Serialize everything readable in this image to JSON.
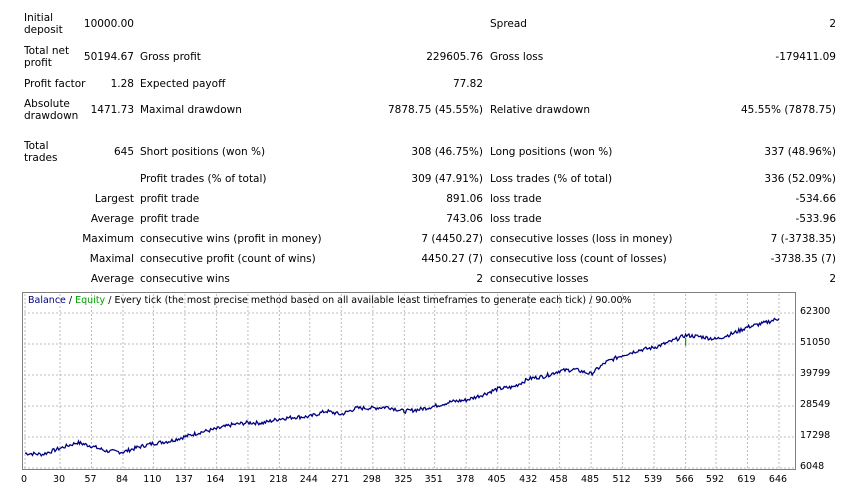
{
  "summary": {
    "initial_deposit": {
      "label": "Initial deposit",
      "value": "10000.00"
    },
    "spread": {
      "label": "Spread",
      "value": "2"
    },
    "total_net_profit": {
      "label": "Total net profit",
      "value": "50194.67"
    },
    "gross_profit": {
      "label": "Gross profit",
      "value": "229605.76"
    },
    "gross_loss": {
      "label": "Gross loss",
      "value": "-179411.09"
    },
    "profit_factor": {
      "label": "Profit factor",
      "value": "1.28"
    },
    "expected_payoff": {
      "label": "Expected payoff",
      "value": "77.82"
    },
    "absolute_drawdown": {
      "label": "Absolute drawdown",
      "value": "1471.73"
    },
    "maximal_drawdown": {
      "label": "Maximal drawdown",
      "value": "7878.75 (45.55%)"
    },
    "relative_drawdown": {
      "label": "Relative drawdown",
      "value": "45.55% (7878.75)"
    },
    "total_trades": {
      "label": "Total trades",
      "value": "645"
    },
    "short_positions": {
      "label": "Short positions (won %)",
      "value": "308 (46.75%)"
    },
    "long_positions": {
      "label": "Long positions (won %)",
      "value": "337 (48.96%)"
    },
    "profit_trades": {
      "label": "Profit trades (% of total)",
      "value": "309 (47.91%)"
    },
    "loss_trades": {
      "label": "Loss trades (% of total)",
      "value": "336 (52.09%)"
    }
  },
  "stats": [
    {
      "prefix": "Largest",
      "left_label": "profit trade",
      "left_value": "891.06",
      "right_label": "loss trade",
      "right_value": "-534.66"
    },
    {
      "prefix": "Average",
      "left_label": "profit trade",
      "left_value": "743.06",
      "right_label": "loss trade",
      "right_value": "-533.96"
    },
    {
      "prefix": "Maximum",
      "left_label": "consecutive wins (profit in money)",
      "left_value": "7 (4450.27)",
      "right_label": "consecutive losses (loss in money)",
      "right_value": "7 (-3738.35)"
    },
    {
      "prefix": "Maximal",
      "left_label": "consecutive profit (count of wins)",
      "left_value": "4450.27 (7)",
      "right_label": "consecutive loss (count of losses)",
      "right_value": "-3738.35 (7)"
    },
    {
      "prefix": "Average",
      "left_label": "consecutive wins",
      "left_value": "2",
      "right_label": "consecutive losses",
      "right_value": "2"
    }
  ],
  "chart_data": {
    "type": "line",
    "title": "",
    "legend": [
      {
        "name": "Balance",
        "color": "#000080"
      },
      {
        "name": "Equity",
        "color": "#00a000"
      }
    ],
    "header_sep": " / ",
    "header_text": "Every tick (the most precise method based on all available least timeframes to generate each tick) / 90.00%",
    "x_ticks": [
      "0",
      "30",
      "57",
      "84",
      "110",
      "137",
      "164",
      "191",
      "218",
      "244",
      "271",
      "298",
      "325",
      "351",
      "378",
      "405",
      "432",
      "458",
      "485",
      "512",
      "539",
      "566",
      "592",
      "619",
      "646"
    ],
    "y_ticks": [
      "62300",
      "51050",
      "39799",
      "28549",
      "17298",
      "6048"
    ],
    "xlim": [
      0,
      646
    ],
    "ylim": [
      6048,
      62300
    ],
    "grid": true,
    "series": [
      {
        "name": "Balance",
        "color": "#000080",
        "x": [
          0,
          15,
          30,
          45,
          57,
          70,
          84,
          97,
          110,
          124,
          137,
          150,
          164,
          177,
          191,
          204,
          218,
          231,
          244,
          258,
          271,
          284,
          298,
          311,
          325,
          338,
          351,
          365,
          378,
          392,
          405,
          418,
          432,
          445,
          458,
          471,
          485,
          498,
          512,
          525,
          539,
          552,
          566,
          579,
          592,
          606,
          619,
          632,
          646
        ],
        "y": [
          11400,
          11000,
          13200,
          15300,
          14000,
          12200,
          11800,
          13600,
          15000,
          15800,
          17400,
          19000,
          20200,
          21700,
          22500,
          22400,
          23900,
          24500,
          24700,
          26700,
          25500,
          27800,
          27800,
          28200,
          26600,
          27300,
          28500,
          30100,
          30700,
          32600,
          34800,
          35400,
          38500,
          39300,
          41300,
          41800,
          40200,
          44500,
          47000,
          48700,
          49800,
          51700,
          54200,
          53700,
          52800,
          54800,
          57200,
          58500,
          60300
        ]
      },
      {
        "name": "Equity",
        "color": "#00a000",
        "x": [
          0,
          646
        ],
        "y": [
          11400,
          60300
        ]
      }
    ]
  }
}
